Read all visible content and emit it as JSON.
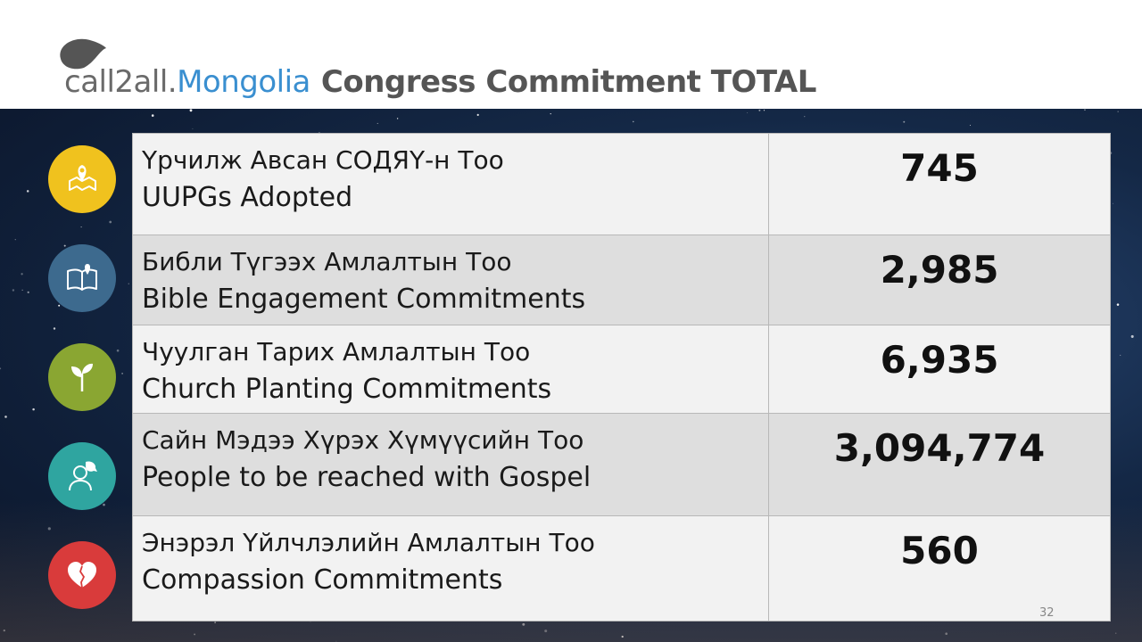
{
  "header": {
    "brand_part1": "call2all.",
    "brand_part2": "Mongolia",
    "title": "Congress Commitment TOTAL"
  },
  "rows": [
    {
      "mn": "Үрчилж Авсан СОДЯҮ-н Тоо",
      "en": "UUPGs Adopted",
      "value": "745",
      "icon": "map-pin-icon",
      "color": "#f0c21e"
    },
    {
      "mn": "Библи Түгээх Амлалтын Тоо",
      "en": "Bible Engagement Commitments",
      "value": "2,985",
      "icon": "open-book-icon",
      "color": "#3d6a8e"
    },
    {
      "mn": "Чуулган Тарих Амлалтын Тоо",
      "en": "Church Planting Commitments",
      "value": "6,935",
      "icon": "sprout-icon",
      "color": "#8aa632"
    },
    {
      "mn": "Сайн Мэдээ Хүрэх Хүмүүсийн Тоо",
      "en": "People to be reached with Gospel",
      "value": "3,094,774",
      "icon": "person-speech-icon",
      "color": "#2fa5a0"
    },
    {
      "mn": "Энэрэл Үйлчлэлийн Амлалтын Тоо",
      "en": "Compassion Commitments",
      "value": "560",
      "icon": "heart-icon",
      "color": "#d93b3b"
    }
  ],
  "page_number": "32"
}
